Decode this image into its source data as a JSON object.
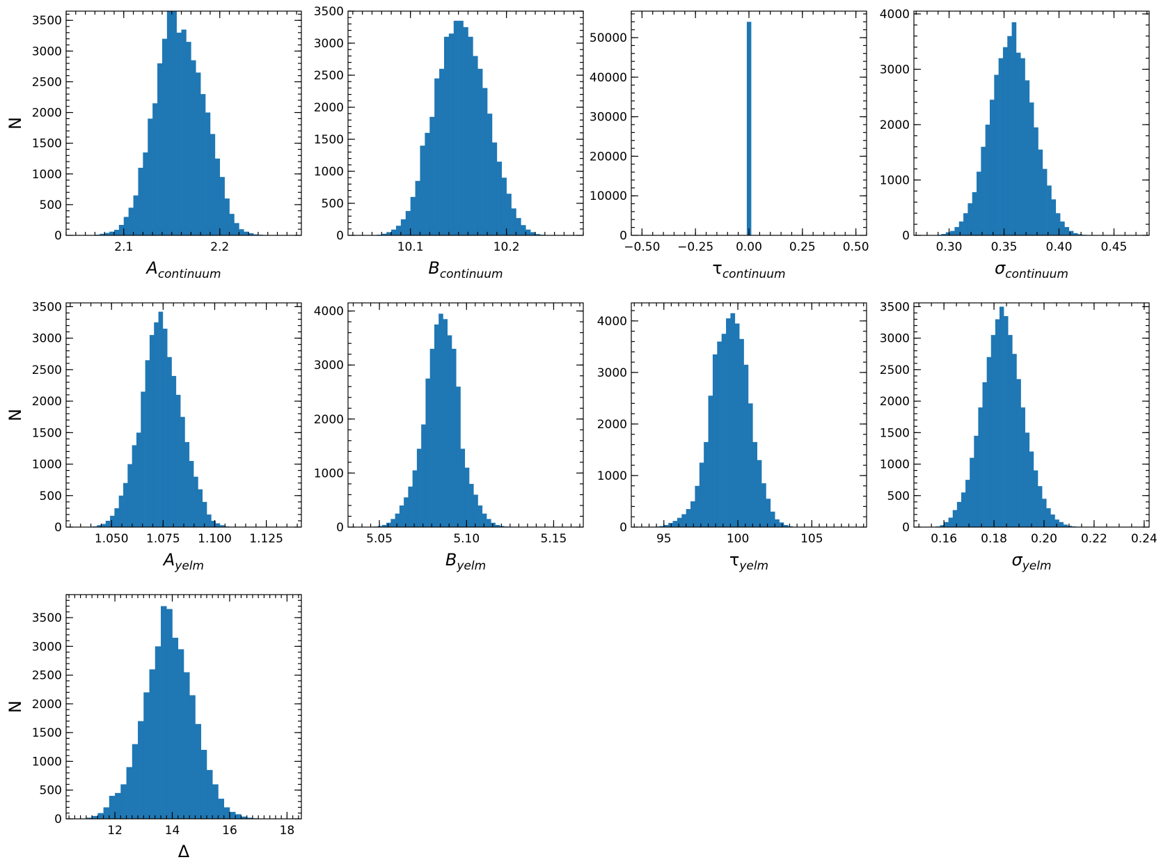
{
  "colors": {
    "bar": "#1f77b4",
    "axis": "#000000",
    "background": "#ffffff"
  },
  "chart_data": [
    {
      "id": "A_continuum",
      "type": "bar",
      "xlabel": {
        "main": "A",
        "sub": "continuum",
        "italic": true
      },
      "ylabel": "N",
      "xlim": [
        2.04,
        2.285
      ],
      "ylim": [
        0,
        3650
      ],
      "xticks": [
        2.1,
        2.2
      ],
      "xtick_labels": [
        "2.1",
        "2.2"
      ],
      "yticks": [
        0,
        500,
        1000,
        1500,
        2000,
        2500,
        3000,
        3500
      ],
      "ytick_labels": [
        "0",
        "500",
        "1000",
        "1500",
        "2000",
        "2500",
        "3000",
        "3500"
      ],
      "bin_start": 2.06,
      "bin_width": 0.005,
      "values": [
        2,
        5,
        10,
        25,
        40,
        60,
        90,
        170,
        300,
        450,
        650,
        1100,
        1350,
        1900,
        2150,
        2800,
        3200,
        3650,
        3650,
        3300,
        3350,
        3150,
        2850,
        2650,
        2300,
        2000,
        1650,
        1250,
        950,
        600,
        350,
        200,
        100,
        60,
        35,
        15,
        10,
        5
      ]
    },
    {
      "id": "B_continuum",
      "type": "bar",
      "xlabel": {
        "main": "B",
        "sub": "continuum",
        "italic": true
      },
      "ylabel": "",
      "xlim": [
        10.035,
        10.28
      ],
      "ylim": [
        0,
        3500
      ],
      "xticks": [
        10.1,
        10.2
      ],
      "xtick_labels": [
        "10.1",
        "10.2"
      ],
      "yticks": [
        0,
        500,
        1000,
        1500,
        2000,
        2500,
        3000,
        3500
      ],
      "ytick_labels": [
        "0",
        "500",
        "1000",
        "1500",
        "2000",
        "2500",
        "3000",
        "3500"
      ],
      "bin_start": 10.055,
      "bin_width": 0.005,
      "values": [
        2,
        5,
        10,
        25,
        50,
        90,
        150,
        250,
        380,
        600,
        850,
        1400,
        1600,
        1850,
        2450,
        2600,
        3100,
        3150,
        3350,
        3350,
        3250,
        3100,
        2800,
        2600,
        2300,
        1900,
        1450,
        1150,
        900,
        650,
        420,
        270,
        160,
        90,
        50,
        20,
        10,
        5
      ]
    },
    {
      "id": "tau_continuum",
      "type": "bar",
      "xlabel": {
        "main": "τ",
        "sub": "continuum",
        "italic": false
      },
      "ylabel": "",
      "xlim": [
        -0.55,
        0.55
      ],
      "ylim": [
        0,
        56700
      ],
      "xticks": [
        -0.5,
        -0.25,
        0.0,
        0.25,
        0.5
      ],
      "xtick_labels": [
        "−0.50",
        "−0.25",
        "0.00",
        "0.25",
        "0.50"
      ],
      "yticks": [
        0,
        10000,
        20000,
        30000,
        40000,
        50000
      ],
      "ytick_labels": [
        "0",
        "10000",
        "20000",
        "30000",
        "40000",
        "50000"
      ],
      "bin_start": -0.01,
      "bin_width": 0.02,
      "values": [
        54000
      ]
    },
    {
      "id": "sigma_continuum",
      "type": "bar",
      "xlabel": {
        "main": "σ",
        "sub": "continuum",
        "italic": true
      },
      "ylabel": "",
      "xlim": [
        0.268,
        0.482
      ],
      "ylim": [
        0,
        4050
      ],
      "xticks": [
        0.3,
        0.35,
        0.4,
        0.45
      ],
      "xtick_labels": [
        "0.30",
        "0.35",
        "0.40",
        "0.45"
      ],
      "yticks": [
        0,
        1000,
        2000,
        3000,
        4000
      ],
      "ytick_labels": [
        "0",
        "1000",
        "2000",
        "3000",
        "4000"
      ],
      "bin_start": 0.285,
      "bin_width": 0.004,
      "values": [
        5,
        10,
        25,
        55,
        80,
        150,
        250,
        400,
        580,
        780,
        1150,
        1600,
        2000,
        2450,
        2900,
        3200,
        3400,
        3600,
        3850,
        3300,
        3200,
        2800,
        2400,
        1950,
        1550,
        1200,
        900,
        650,
        400,
        250,
        150,
        80,
        40,
        20,
        10,
        5
      ]
    },
    {
      "id": "A_yelm",
      "type": "bar",
      "xlabel": {
        "main": "A",
        "sub": "yelm",
        "italic": true
      },
      "ylabel": "N",
      "xlim": [
        1.028,
        1.142
      ],
      "ylim": [
        0,
        3560
      ],
      "xticks": [
        1.05,
        1.075,
        1.1,
        1.125
      ],
      "xtick_labels": [
        "1.050",
        "1.075",
        "1.100",
        "1.125"
      ],
      "yticks": [
        0,
        500,
        1000,
        1500,
        2000,
        2500,
        3000,
        3500
      ],
      "ytick_labels": [
        "0",
        "500",
        "1000",
        "1500",
        "2000",
        "2500",
        "3000",
        "3500"
      ],
      "bin_start": 1.0365,
      "bin_width": 0.00213,
      "values": [
        2,
        5,
        10,
        30,
        50,
        100,
        180,
        300,
        500,
        700,
        1000,
        1300,
        1500,
        2150,
        2650,
        3050,
        3250,
        3420,
        3150,
        2700,
        2400,
        2100,
        1750,
        1350,
        1050,
        800,
        600,
        400,
        200,
        100,
        60,
        30,
        10,
        5
      ]
    },
    {
      "id": "B_yelm",
      "type": "bar",
      "xlabel": {
        "main": "B",
        "sub": "yelm",
        "italic": true
      },
      "ylabel": "",
      "xlim": [
        5.032,
        5.167
      ],
      "ylim": [
        0,
        4150
      ],
      "xticks": [
        5.05,
        5.1,
        5.15
      ],
      "xtick_labels": [
        "5.05",
        "5.10",
        "5.15"
      ],
      "bin_start": 5.0415,
      "bin_width": 0.0025,
      "yticks": [
        0,
        1000,
        2000,
        3000,
        4000
      ],
      "ytick_labels": [
        "0",
        "1000",
        "2000",
        "3000",
        "4000"
      ],
      "values": [
        2,
        5,
        10,
        20,
        40,
        80,
        150,
        250,
        400,
        550,
        750,
        1050,
        1450,
        1900,
        2750,
        3300,
        3750,
        3950,
        3850,
        3550,
        3300,
        2600,
        1450,
        1100,
        800,
        600,
        400,
        250,
        150,
        80,
        40,
        20,
        10,
        5
      ]
    },
    {
      "id": "tau_yelm",
      "type": "bar",
      "xlabel": {
        "main": "τ",
        "sub": "yelm",
        "italic": false
      },
      "ylabel": "",
      "xlim": [
        92.8,
        108.7
      ],
      "ylim": [
        0,
        4350
      ],
      "xticks": [
        95,
        100,
        105
      ],
      "xtick_labels": [
        "95",
        "100",
        "105"
      ],
      "yticks": [
        0,
        1000,
        2000,
        3000,
        4000
      ],
      "ytick_labels": [
        "0",
        "1000",
        "2000",
        "3000",
        "4000"
      ],
      "bin_start": 93.8,
      "bin_width": 0.3,
      "values": [
        2,
        5,
        10,
        20,
        40,
        80,
        120,
        180,
        250,
        350,
        500,
        800,
        1250,
        1650,
        2550,
        3350,
        3600,
        3750,
        4050,
        4150,
        3950,
        3650,
        3150,
        2400,
        1650,
        1300,
        850,
        550,
        300,
        150,
        90,
        40,
        15,
        5
      ]
    },
    {
      "id": "sigma_yelm",
      "type": "bar",
      "xlabel": {
        "main": "σ",
        "sub": "yelm",
        "italic": true
      },
      "ylabel": "",
      "xlim": [
        0.148,
        0.242
      ],
      "ylim": [
        0,
        3560
      ],
      "xticks": [
        0.16,
        0.18,
        0.2,
        0.22,
        0.24
      ],
      "xtick_labels": [
        "0.16",
        "0.18",
        "0.20",
        "0.22",
        "0.24"
      ],
      "yticks": [
        0,
        500,
        1000,
        1500,
        2000,
        2500,
        3000,
        3500
      ],
      "ytick_labels": [
        "0",
        "500",
        "1000",
        "1500",
        "2000",
        "2500",
        "3000",
        "3500"
      ],
      "bin_start": 0.155,
      "bin_width": 0.0017,
      "values": [
        5,
        10,
        30,
        80,
        150,
        270,
        400,
        550,
        750,
        1100,
        1450,
        1900,
        2300,
        2700,
        3050,
        3300,
        3500,
        3350,
        3050,
        2750,
        2350,
        1900,
        1500,
        1200,
        900,
        650,
        450,
        300,
        200,
        120,
        80,
        40,
        20,
        10,
        5
      ]
    },
    {
      "id": "Delta",
      "type": "bar",
      "xlabel": {
        "main": "Δ",
        "sub": "",
        "italic": false
      },
      "ylabel": "N",
      "xlim": [
        10.3,
        18.5
      ],
      "ylim": [
        0,
        3900
      ],
      "xticks": [
        12,
        14,
        16,
        18
      ],
      "xtick_labels": [
        "12",
        "14",
        "16",
        "18"
      ],
      "yticks": [
        0,
        500,
        1000,
        1500,
        2000,
        2500,
        3000,
        3500
      ],
      "ytick_labels": [
        "0",
        "500",
        "1000",
        "1500",
        "2000",
        "2500",
        "3000",
        "3500"
      ],
      "bin_start": 10.8,
      "bin_width": 0.2,
      "values": [
        5,
        20,
        50,
        100,
        200,
        400,
        450,
        600,
        900,
        1300,
        1700,
        2200,
        2600,
        3000,
        3700,
        3650,
        3150,
        2950,
        2550,
        2150,
        1650,
        1200,
        850,
        600,
        350,
        200,
        120,
        80,
        40,
        20,
        10,
        5
      ]
    }
  ]
}
